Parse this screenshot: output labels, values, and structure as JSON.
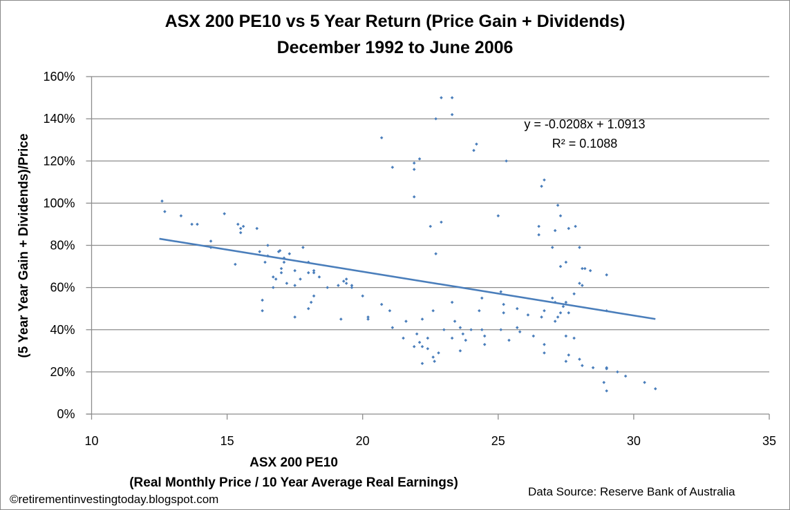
{
  "chart_data": {
    "type": "scatter",
    "title": "ASX 200 PE10 vs 5 Year Return (Price Gain +  Dividends)",
    "subtitle": "December 1992 to June 2006",
    "xlabel": "ASX 200 PE10",
    "xlabel_sub": "(Real Monthly Price / 10 Year Average Real Earnings)",
    "ylabel": "(5 Year Year Gain + Dividends)/Price",
    "xlim": [
      10,
      35
    ],
    "ylim": [
      0,
      1.6
    ],
    "x_ticks": [
      "10",
      "15",
      "20",
      "25",
      "30",
      "35"
    ],
    "y_ticks": [
      "0%",
      "20%",
      "40%",
      "60%",
      "80%",
      "100%",
      "120%",
      "140%",
      "160%"
    ],
    "grid": "horizontal",
    "legend": "none",
    "marker_color": "#4a7ebb",
    "trendline": {
      "slope": -0.0208,
      "intercept": 1.0913,
      "x_range": [
        12.5,
        30.8
      ],
      "equation": "y = -0.0208x + 1.0913",
      "r_squared": "R² = 0.1088",
      "color": "#4a7ebb"
    },
    "points": [
      [
        12.6,
        1.01
      ],
      [
        12.7,
        0.96
      ],
      [
        13.3,
        0.94
      ],
      [
        13.7,
        0.9
      ],
      [
        13.9,
        0.9
      ],
      [
        14.9,
        0.95
      ],
      [
        15.4,
        0.9
      ],
      [
        15.5,
        0.88
      ],
      [
        15.6,
        0.89
      ],
      [
        15.5,
        0.86
      ],
      [
        16.1,
        0.88
      ],
      [
        14.4,
        0.82
      ],
      [
        14.4,
        0.79
      ],
      [
        16.5,
        0.8
      ],
      [
        16.2,
        0.77
      ],
      [
        16.5,
        0.75
      ],
      [
        16.4,
        0.72
      ],
      [
        15.3,
        0.71
      ],
      [
        16.9,
        0.77
      ],
      [
        16.95,
        0.775
      ],
      [
        17.1,
        0.74
      ],
      [
        17.1,
        0.72
      ],
      [
        17.3,
        0.76
      ],
      [
        17.8,
        0.79
      ],
      [
        18.0,
        0.72
      ],
      [
        17.0,
        0.69
      ],
      [
        17.0,
        0.67
      ],
      [
        17.5,
        0.68
      ],
      [
        18.0,
        0.67
      ],
      [
        18.2,
        0.68
      ],
      [
        18.2,
        0.67
      ],
      [
        18.4,
        0.65
      ],
      [
        16.7,
        0.65
      ],
      [
        16.8,
        0.64
      ],
      [
        17.2,
        0.62
      ],
      [
        17.5,
        0.61
      ],
      [
        17.7,
        0.64
      ],
      [
        16.7,
        0.6
      ],
      [
        18.7,
        0.6
      ],
      [
        19.1,
        0.61
      ],
      [
        19.4,
        0.64
      ],
      [
        19.3,
        0.63
      ],
      [
        19.4,
        0.62
      ],
      [
        19.6,
        0.6
      ],
      [
        20.0,
        0.56
      ],
      [
        16.3,
        0.54
      ],
      [
        16.3,
        0.49
      ],
      [
        18.1,
        0.53
      ],
      [
        18.2,
        0.56
      ],
      [
        18.0,
        0.5
      ],
      [
        17.5,
        0.46
      ],
      [
        19.2,
        0.45
      ],
      [
        22.9,
        1.5
      ],
      [
        23.3,
        1.5
      ],
      [
        23.3,
        1.42
      ],
      [
        22.7,
        1.4
      ],
      [
        20.7,
        1.31
      ],
      [
        24.2,
        1.28
      ],
      [
        24.1,
        1.25
      ],
      [
        22.1,
        1.21
      ],
      [
        25.3,
        1.2
      ],
      [
        21.9,
        1.19
      ],
      [
        21.1,
        1.17
      ],
      [
        21.9,
        1.16
      ],
      [
        26.7,
        1.11
      ],
      [
        26.6,
        1.08
      ],
      [
        21.9,
        1.03
      ],
      [
        25.0,
        0.94
      ],
      [
        22.9,
        0.91
      ],
      [
        22.5,
        0.89
      ],
      [
        26.5,
        0.89
      ],
      [
        26.5,
        0.85
      ],
      [
        27.0,
        0.79
      ],
      [
        22.7,
        0.76
      ],
      [
        19.6,
        0.61
      ],
      [
        20.7,
        0.52
      ],
      [
        21.0,
        0.49
      ],
      [
        20.2,
        0.46
      ],
      [
        20.2,
        0.45
      ],
      [
        21.1,
        0.41
      ],
      [
        21.6,
        0.44
      ],
      [
        22.2,
        0.45
      ],
      [
        22.6,
        0.49
      ],
      [
        23.3,
        0.53
      ],
      [
        23.4,
        0.44
      ],
      [
        24.4,
        0.55
      ],
      [
        25.1,
        0.58
      ],
      [
        24.3,
        0.49
      ],
      [
        25.2,
        0.52
      ],
      [
        25.2,
        0.48
      ],
      [
        25.7,
        0.5
      ],
      [
        26.1,
        0.47
      ],
      [
        26.7,
        0.49
      ],
      [
        26.6,
        0.46
      ],
      [
        27.0,
        0.55
      ],
      [
        21.5,
        0.36
      ],
      [
        21.9,
        0.32
      ],
      [
        22.0,
        0.38
      ],
      [
        22.1,
        0.34
      ],
      [
        22.2,
        0.32
      ],
      [
        22.4,
        0.36
      ],
      [
        22.4,
        0.31
      ],
      [
        22.6,
        0.27
      ],
      [
        22.65,
        0.25
      ],
      [
        22.2,
        0.24
      ],
      [
        22.8,
        0.29
      ],
      [
        23.0,
        0.4
      ],
      [
        23.3,
        0.36
      ],
      [
        23.6,
        0.3
      ],
      [
        23.6,
        0.41
      ],
      [
        23.7,
        0.38
      ],
      [
        23.8,
        0.35
      ],
      [
        24.0,
        0.4
      ],
      [
        24.4,
        0.4
      ],
      [
        24.5,
        0.37
      ],
      [
        24.5,
        0.33
      ],
      [
        25.1,
        0.4
      ],
      [
        25.4,
        0.35
      ],
      [
        25.7,
        0.41
      ],
      [
        25.8,
        0.39
      ],
      [
        26.3,
        0.37
      ],
      [
        26.7,
        0.33
      ],
      [
        26.7,
        0.29
      ],
      [
        27.2,
        0.99
      ],
      [
        27.3,
        0.94
      ],
      [
        27.1,
        0.87
      ],
      [
        27.6,
        0.88
      ],
      [
        27.85,
        0.89
      ],
      [
        28.0,
        0.79
      ],
      [
        27.3,
        0.7
      ],
      [
        27.5,
        0.72
      ],
      [
        28.1,
        0.69
      ],
      [
        28.2,
        0.69
      ],
      [
        28.4,
        0.68
      ],
      [
        29.0,
        0.66
      ],
      [
        28.0,
        0.62
      ],
      [
        28.1,
        0.61
      ],
      [
        27.8,
        0.57
      ],
      [
        27.1,
        0.53
      ],
      [
        27.5,
        0.53
      ],
      [
        27.4,
        0.51
      ],
      [
        27.3,
        0.48
      ],
      [
        27.2,
        0.46
      ],
      [
        27.6,
        0.48
      ],
      [
        27.1,
        0.44
      ],
      [
        29.0,
        0.49
      ],
      [
        27.5,
        0.37
      ],
      [
        27.8,
        0.36
      ],
      [
        27.6,
        0.28
      ],
      [
        27.5,
        0.25
      ],
      [
        28.0,
        0.26
      ],
      [
        28.1,
        0.23
      ],
      [
        28.5,
        0.22
      ],
      [
        29.0,
        0.22
      ],
      [
        29.0,
        0.215
      ],
      [
        29.4,
        0.2
      ],
      [
        29.7,
        0.18
      ],
      [
        28.9,
        0.15
      ],
      [
        29.0,
        0.11
      ],
      [
        30.4,
        0.15
      ],
      [
        30.8,
        0.12
      ]
    ]
  },
  "footer": {
    "copyright": "©retirementinvestingtoday.blogspot.com",
    "source": "Data Source: Reserve  Bank of Australia"
  }
}
